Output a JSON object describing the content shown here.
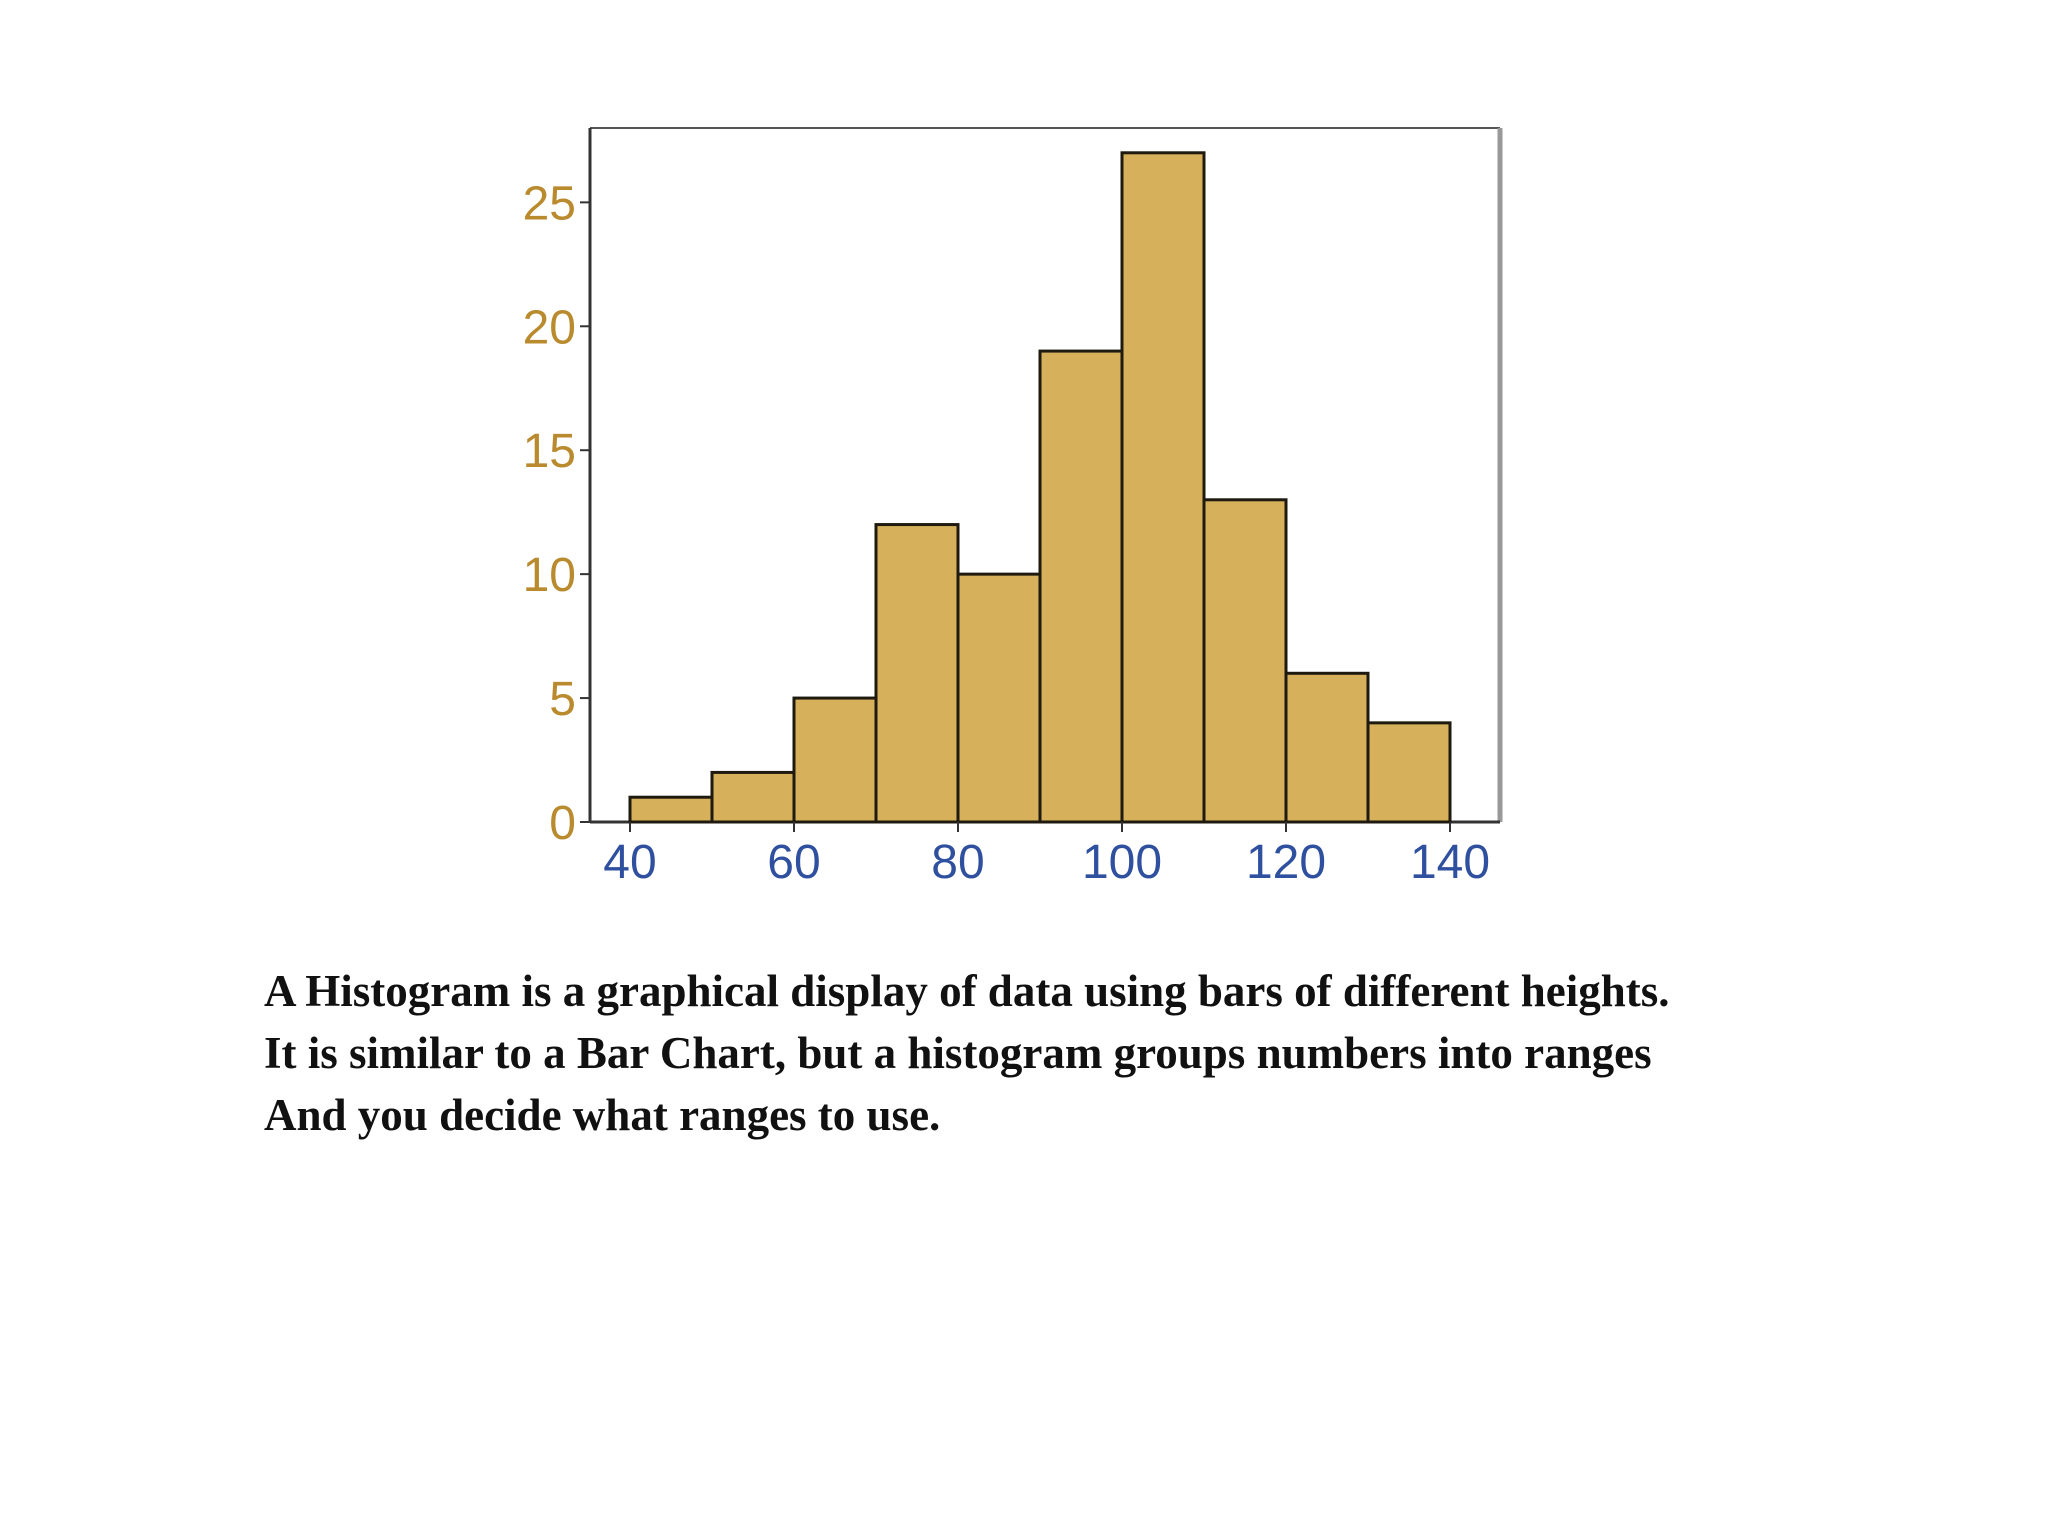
{
  "chart_data": {
    "type": "bar",
    "histogram": true,
    "bin_edges": [
      40,
      50,
      60,
      70,
      80,
      90,
      100,
      110,
      120,
      130,
      140
    ],
    "values": [
      1,
      2,
      5,
      12,
      10,
      19,
      27,
      13,
      6,
      4
    ],
    "xticks": [
      "40",
      "60",
      "80",
      "100",
      "120",
      "140"
    ],
    "yticks": [
      "0",
      "5",
      "10",
      "15",
      "20",
      "25"
    ],
    "xlim": [
      40,
      140
    ],
    "ylim": [
      0,
      28
    ],
    "grid": false,
    "colors": {
      "bar_fill": "#d6b05a",
      "bar_stroke": "#1f1a10",
      "y_tick_color": "#b98a2e",
      "x_tick_color": "#2f4f9f"
    }
  },
  "caption": {
    "line1": "A Histogram is a graphical display of data using bars of different heights.",
    "line2": "It is similar to a Bar Chart, but a histogram groups numbers into ranges",
    "line3": "And you decide what ranges to use."
  }
}
